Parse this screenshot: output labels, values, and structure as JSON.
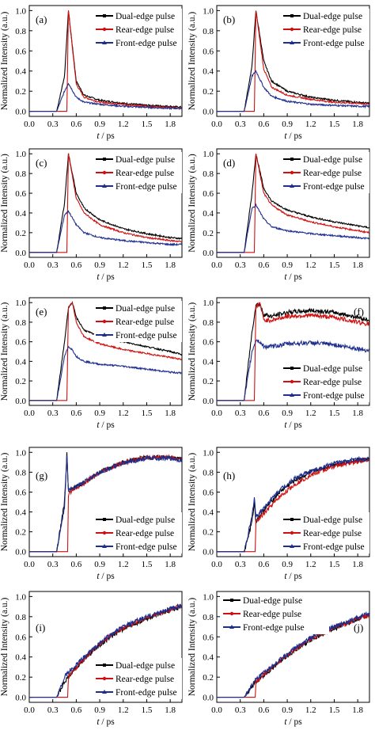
{
  "figure": {
    "xlabel_italic": "t",
    "xlabel_unit": " / ps",
    "ylabel": "Normalized Intensity (a.u.)",
    "xticks": [
      "0.0",
      "0.3",
      "0.6",
      "0.9",
      "1.2",
      "1.5",
      "1.8"
    ],
    "yticks": [
      "0.0",
      "0.2",
      "0.4",
      "0.6",
      "0.8",
      "1.0"
    ]
  },
  "colors": {
    "dual": "#000000",
    "rear": "#d01010",
    "front": "#1f2f8f"
  },
  "chart_data": [
    {
      "panel": "(a)",
      "type": "line",
      "xlabel": "t / ps",
      "ylabel": "Normalized Intensity (a.u.)",
      "xlim": [
        0,
        1.95
      ],
      "ylim": [
        0,
        1.0
      ],
      "legend_position": "top-right",
      "series": [
        {
          "name": "Dual-edge pulse",
          "x": [
            0.0,
            0.35,
            0.45,
            0.5,
            0.6,
            0.7,
            0.9,
            1.2,
            1.5,
            1.8,
            1.95
          ],
          "y": [
            0.0,
            0.0,
            0.35,
            1.0,
            0.3,
            0.16,
            0.11,
            0.08,
            0.06,
            0.05,
            0.04
          ]
        },
        {
          "name": "Rear-edge pulse",
          "x": [
            0.0,
            0.48,
            0.5,
            0.6,
            0.7,
            0.9,
            1.2,
            1.5,
            1.8,
            1.95
          ],
          "y": [
            0.0,
            0.0,
            1.0,
            0.27,
            0.14,
            0.09,
            0.07,
            0.05,
            0.04,
            0.03
          ]
        },
        {
          "name": "Front-edge pulse",
          "x": [
            0.0,
            0.35,
            0.45,
            0.5,
            0.6,
            0.7,
            0.9,
            1.2,
            1.5,
            1.8,
            1.95
          ],
          "y": [
            0.0,
            0.0,
            0.2,
            0.28,
            0.14,
            0.09,
            0.07,
            0.05,
            0.04,
            0.03,
            0.03
          ]
        }
      ]
    },
    {
      "panel": "(b)",
      "type": "line",
      "xlabel": "t / ps",
      "ylabel": "Normalized Intensity (a.u.)",
      "xlim": [
        0,
        1.95
      ],
      "ylim": [
        0,
        1.0
      ],
      "legend_position": "top-right",
      "series": [
        {
          "name": "Dual-edge pulse",
          "x": [
            0.0,
            0.35,
            0.45,
            0.5,
            0.6,
            0.7,
            0.9,
            1.2,
            1.5,
            1.8,
            1.95
          ],
          "y": [
            0.0,
            0.0,
            0.45,
            1.0,
            0.5,
            0.3,
            0.2,
            0.14,
            0.11,
            0.09,
            0.08
          ]
        },
        {
          "name": "Rear-edge pulse",
          "x": [
            0.0,
            0.48,
            0.5,
            0.6,
            0.7,
            0.9,
            1.2,
            1.5,
            1.8,
            1.95
          ],
          "y": [
            0.0,
            0.0,
            1.0,
            0.42,
            0.24,
            0.16,
            0.12,
            0.09,
            0.08,
            0.07
          ]
        },
        {
          "name": "Front-edge pulse",
          "x": [
            0.0,
            0.35,
            0.45,
            0.5,
            0.6,
            0.7,
            0.9,
            1.2,
            1.5,
            1.8,
            1.95
          ],
          "y": [
            0.0,
            0.0,
            0.35,
            0.4,
            0.24,
            0.15,
            0.1,
            0.07,
            0.06,
            0.05,
            0.05
          ]
        }
      ]
    },
    {
      "panel": "(c)",
      "type": "line",
      "xlabel": "t / ps",
      "ylabel": "Normalized Intensity (a.u.)",
      "xlim": [
        0,
        1.95
      ],
      "ylim": [
        0,
        1.0
      ],
      "legend_position": "top-right",
      "series": [
        {
          "name": "Dual-edge pulse",
          "x": [
            0.0,
            0.35,
            0.45,
            0.5,
            0.6,
            0.7,
            0.9,
            1.2,
            1.5,
            1.8,
            1.95
          ],
          "y": [
            0.0,
            0.0,
            0.5,
            1.0,
            0.6,
            0.45,
            0.33,
            0.24,
            0.19,
            0.15,
            0.14
          ]
        },
        {
          "name": "Rear-edge pulse",
          "x": [
            0.0,
            0.48,
            0.5,
            0.6,
            0.7,
            0.9,
            1.2,
            1.5,
            1.8,
            1.95
          ],
          "y": [
            0.0,
            0.0,
            1.0,
            0.55,
            0.4,
            0.28,
            0.2,
            0.15,
            0.12,
            0.11
          ]
        },
        {
          "name": "Front-edge pulse",
          "x": [
            0.0,
            0.35,
            0.45,
            0.5,
            0.6,
            0.7,
            0.9,
            1.2,
            1.5,
            1.8,
            1.95
          ],
          "y": [
            0.0,
            0.0,
            0.38,
            0.42,
            0.28,
            0.2,
            0.15,
            0.12,
            0.1,
            0.08,
            0.08
          ]
        }
      ]
    },
    {
      "panel": "(d)",
      "type": "line",
      "xlabel": "t / ps",
      "ylabel": "Normalized Intensity (a.u.)",
      "xlim": [
        0,
        1.95
      ],
      "ylim": [
        0,
        1.0
      ],
      "legend_position": "top-right",
      "series": [
        {
          "name": "Dual-edge pulse",
          "x": [
            0.0,
            0.35,
            0.45,
            0.5,
            0.6,
            0.7,
            0.9,
            1.2,
            1.5,
            1.8,
            1.95
          ],
          "y": [
            0.0,
            0.0,
            0.6,
            1.0,
            0.65,
            0.52,
            0.43,
            0.36,
            0.31,
            0.27,
            0.25
          ]
        },
        {
          "name": "Rear-edge pulse",
          "x": [
            0.0,
            0.48,
            0.5,
            0.6,
            0.7,
            0.9,
            1.2,
            1.5,
            1.8,
            1.95
          ],
          "y": [
            0.0,
            0.0,
            1.0,
            0.6,
            0.48,
            0.38,
            0.31,
            0.26,
            0.22,
            0.2
          ]
        },
        {
          "name": "Front-edge pulse",
          "x": [
            0.0,
            0.35,
            0.45,
            0.5,
            0.6,
            0.7,
            0.9,
            1.2,
            1.5,
            1.8,
            1.95
          ],
          "y": [
            0.0,
            0.0,
            0.45,
            0.48,
            0.34,
            0.26,
            0.22,
            0.19,
            0.17,
            0.15,
            0.14
          ]
        }
      ]
    },
    {
      "panel": "(e)",
      "type": "line",
      "xlabel": "t / ps",
      "ylabel": "Normalized Intensity (a.u.)",
      "xlim": [
        0,
        1.95
      ],
      "ylim": [
        0,
        1.0
      ],
      "legend_position": "top-right",
      "series": [
        {
          "name": "Dual-edge pulse",
          "x": [
            0.0,
            0.35,
            0.45,
            0.5,
            0.55,
            0.6,
            0.7,
            0.9,
            1.2,
            1.5,
            1.8,
            1.95
          ],
          "y": [
            0.0,
            0.0,
            0.6,
            0.95,
            1.0,
            0.85,
            0.72,
            0.65,
            0.6,
            0.55,
            0.5,
            0.47
          ]
        },
        {
          "name": "Rear-edge pulse",
          "x": [
            0.0,
            0.48,
            0.5,
            0.55,
            0.6,
            0.7,
            0.9,
            1.2,
            1.5,
            1.8,
            1.95
          ],
          "y": [
            0.0,
            0.0,
            0.95,
            1.0,
            0.8,
            0.65,
            0.58,
            0.52,
            0.48,
            0.44,
            0.42
          ]
        },
        {
          "name": "Front-edge pulse",
          "x": [
            0.0,
            0.35,
            0.45,
            0.5,
            0.55,
            0.6,
            0.7,
            0.9,
            1.2,
            1.5,
            1.8,
            1.95
          ],
          "y": [
            0.0,
            0.0,
            0.45,
            0.55,
            0.52,
            0.45,
            0.4,
            0.37,
            0.35,
            0.32,
            0.29,
            0.28
          ]
        }
      ]
    },
    {
      "panel": "(f)",
      "type": "line",
      "xlabel": "t / ps",
      "ylabel": "Normalized Intensity (a.u.)",
      "xlim": [
        0,
        1.95
      ],
      "ylim": [
        0,
        1.0
      ],
      "legend_position": "bottom-right",
      "series": [
        {
          "name": "Dual-edge pulse",
          "x": [
            0.0,
            0.35,
            0.45,
            0.5,
            0.55,
            0.6,
            0.7,
            0.9,
            1.2,
            1.5,
            1.8,
            1.95
          ],
          "y": [
            0.0,
            0.0,
            0.7,
            0.98,
            0.98,
            0.88,
            0.86,
            0.9,
            0.92,
            0.9,
            0.85,
            0.82
          ]
        },
        {
          "name": "Rear-edge pulse",
          "x": [
            0.0,
            0.48,
            0.5,
            0.55,
            0.6,
            0.7,
            0.9,
            1.2,
            1.5,
            1.8,
            1.95
          ],
          "y": [
            0.0,
            0.0,
            0.95,
            1.0,
            0.82,
            0.82,
            0.86,
            0.87,
            0.85,
            0.8,
            0.78
          ]
        },
        {
          "name": "Front-edge pulse",
          "x": [
            0.0,
            0.35,
            0.45,
            0.5,
            0.55,
            0.6,
            0.7,
            0.9,
            1.2,
            1.5,
            1.8,
            1.95
          ],
          "y": [
            0.0,
            0.0,
            0.5,
            0.62,
            0.6,
            0.55,
            0.55,
            0.58,
            0.59,
            0.57,
            0.53,
            0.51
          ]
        }
      ]
    },
    {
      "panel": "(g)",
      "type": "line",
      "xlabel": "t / ps",
      "ylabel": "Normalized Intensity (a.u.)",
      "xlim": [
        0,
        1.95
      ],
      "ylim": [
        0,
        1.0
      ],
      "legend_position": "bottom-right",
      "series": [
        {
          "name": "Dual-edge pulse",
          "x": [
            0.0,
            0.35,
            0.45,
            0.48,
            0.5,
            0.55,
            0.7,
            0.9,
            1.2,
            1.5,
            1.8,
            1.95
          ],
          "y": [
            0.0,
            0.0,
            0.5,
            0.98,
            0.6,
            0.63,
            0.7,
            0.8,
            0.9,
            0.95,
            0.95,
            0.93
          ]
        },
        {
          "name": "Rear-edge pulse",
          "x": [
            0.0,
            0.49,
            0.5,
            0.55,
            0.7,
            0.9,
            1.2,
            1.5,
            1.8,
            1.95
          ],
          "y": [
            0.0,
            0.0,
            0.58,
            0.62,
            0.69,
            0.8,
            0.9,
            0.95,
            0.95,
            0.93
          ]
        },
        {
          "name": "Front-edge pulse",
          "x": [
            0.0,
            0.35,
            0.45,
            0.48,
            0.5,
            0.55,
            0.7,
            0.9,
            1.2,
            1.5,
            1.8,
            1.95
          ],
          "y": [
            0.0,
            0.0,
            0.45,
            0.95,
            0.62,
            0.64,
            0.7,
            0.8,
            0.89,
            0.94,
            0.94,
            0.92
          ]
        }
      ]
    },
    {
      "panel": "(h)",
      "type": "line",
      "xlabel": "t / ps",
      "ylabel": "Normalized Intensity (a.u.)",
      "xlim": [
        0,
        1.95
      ],
      "ylim": [
        0,
        1.0
      ],
      "legend_position": "bottom-right",
      "series": [
        {
          "name": "Dual-edge pulse",
          "x": [
            0.0,
            0.35,
            0.45,
            0.48,
            0.5,
            0.6,
            0.8,
            1.0,
            1.2,
            1.5,
            1.8,
            1.95
          ],
          "y": [
            0.0,
            0.0,
            0.3,
            0.5,
            0.3,
            0.42,
            0.6,
            0.72,
            0.8,
            0.88,
            0.92,
            0.93
          ]
        },
        {
          "name": "Rear-edge pulse",
          "x": [
            0.0,
            0.49,
            0.5,
            0.6,
            0.8,
            1.0,
            1.2,
            1.5,
            1.8,
            1.95
          ],
          "y": [
            0.0,
            0.0,
            0.3,
            0.38,
            0.55,
            0.68,
            0.77,
            0.86,
            0.91,
            0.92
          ]
        },
        {
          "name": "Front-edge pulse",
          "x": [
            0.0,
            0.35,
            0.45,
            0.48,
            0.5,
            0.6,
            0.8,
            1.0,
            1.2,
            1.5,
            1.8,
            1.95
          ],
          "y": [
            0.0,
            0.0,
            0.35,
            0.55,
            0.35,
            0.44,
            0.62,
            0.74,
            0.81,
            0.89,
            0.93,
            0.94
          ]
        }
      ]
    },
    {
      "panel": "(i)",
      "type": "line",
      "xlabel": "t / ps",
      "ylabel": "Normalized Intensity (a.u.)",
      "xlim": [
        0,
        1.95
      ],
      "ylim": [
        0,
        1.0
      ],
      "legend_position": "bottom-right",
      "series": [
        {
          "name": "Dual-edge pulse",
          "x": [
            0.0,
            0.35,
            0.45,
            0.5,
            0.6,
            0.8,
            1.0,
            1.2,
            1.5,
            1.8,
            1.95
          ],
          "y": [
            0.0,
            0.0,
            0.15,
            0.2,
            0.3,
            0.45,
            0.58,
            0.68,
            0.78,
            0.86,
            0.9
          ]
        },
        {
          "name": "Rear-edge pulse",
          "x": [
            0.0,
            0.49,
            0.5,
            0.6,
            0.8,
            1.0,
            1.2,
            1.5,
            1.8,
            1.95
          ],
          "y": [
            0.0,
            0.0,
            0.2,
            0.3,
            0.46,
            0.59,
            0.69,
            0.79,
            0.87,
            0.91
          ]
        },
        {
          "name": "Front-edge pulse",
          "x": [
            0.0,
            0.35,
            0.45,
            0.5,
            0.6,
            0.8,
            1.0,
            1.2,
            1.5,
            1.8,
            1.95
          ],
          "y": [
            0.0,
            0.0,
            0.2,
            0.25,
            0.32,
            0.47,
            0.6,
            0.7,
            0.8,
            0.88,
            0.91
          ]
        }
      ]
    },
    {
      "panel": "(j)",
      "type": "line",
      "xlabel": "t / ps",
      "ylabel": "Normalized Intensity (a.u.)",
      "xlim": [
        0,
        1.95
      ],
      "ylim": [
        0,
        1.0
      ],
      "legend_position": "top-left",
      "series": [
        {
          "name": "Dual-edge pulse",
          "x": [
            0.0,
            0.35,
            0.45,
            0.5,
            0.6,
            0.8,
            1.0,
            1.2,
            1.5,
            1.8,
            1.95
          ],
          "y": [
            0.0,
            0.0,
            0.1,
            0.15,
            0.22,
            0.35,
            0.47,
            0.57,
            0.68,
            0.78,
            0.82
          ]
        },
        {
          "name": "Rear-edge pulse",
          "x": [
            0.0,
            0.49,
            0.5,
            0.6,
            0.8,
            1.0,
            1.2,
            1.5,
            1.8,
            1.95
          ],
          "y": [
            0.0,
            0.0,
            0.15,
            0.23,
            0.36,
            0.48,
            0.58,
            0.69,
            0.78,
            0.82
          ]
        },
        {
          "name": "Front-edge pulse",
          "x": [
            0.0,
            0.35,
            0.45,
            0.5,
            0.6,
            0.8,
            1.0,
            1.2,
            1.5,
            1.8,
            1.95
          ],
          "y": [
            0.0,
            0.0,
            0.12,
            0.18,
            0.24,
            0.37,
            0.49,
            0.59,
            0.7,
            0.79,
            0.83
          ]
        }
      ]
    }
  ]
}
